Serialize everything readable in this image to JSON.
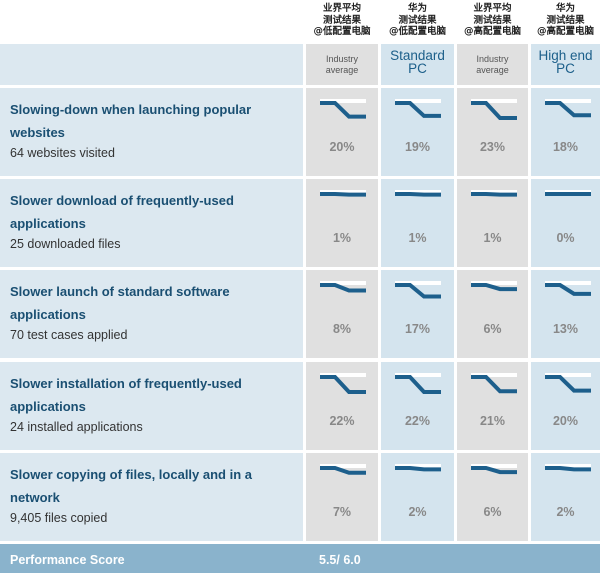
{
  "header": {
    "columns": [
      {
        "cn": "业界平均\n测试结果\n@低配置电脑",
        "sub": "Industry average",
        "sub_style": "small"
      },
      {
        "cn": "华为\n测试结果\n@低配置电脑",
        "sub": "Standard PC",
        "sub_style": "big"
      },
      {
        "cn": "业界平均\n测试结果\n@高配置电脑",
        "sub": "Industry average",
        "sub_style": "small"
      },
      {
        "cn": "华为\n测试结果\n@高配置电脑",
        "sub": "High end PC",
        "sub_style": "big"
      }
    ]
  },
  "colors": {
    "title": "#1a4f72",
    "accent": "#1c5f8a",
    "gray_cell": "#e0e0e0",
    "blue_cell": "#d4e4ee",
    "footer": "#8ab3cc",
    "spark_line": "#1d5f8c"
  },
  "rows": [
    {
      "title": "Slowing-down when launching popular websites",
      "subtitle": "64 websites visited",
      "values": [
        "20%",
        "19%",
        "23%",
        "18%"
      ],
      "impact": [
        0.2,
        0.19,
        0.23,
        0.18
      ]
    },
    {
      "title": "Slower download of frequently-used applications",
      "subtitle": "25 downloaded files",
      "values": [
        "1%",
        "1%",
        "1%",
        "0%"
      ],
      "impact": [
        0.01,
        0.01,
        0.01,
        0.0
      ]
    },
    {
      "title": "Slower launch of standard software applications",
      "subtitle": "70 test cases applied",
      "values": [
        "8%",
        "17%",
        "6%",
        "13%"
      ],
      "impact": [
        0.08,
        0.17,
        0.06,
        0.13
      ]
    },
    {
      "title": "Slower installation of frequently-used applications",
      "subtitle": "24 installed applications",
      "values": [
        "22%",
        "22%",
        "21%",
        "20%"
      ],
      "impact": [
        0.22,
        0.22,
        0.21,
        0.2
      ]
    },
    {
      "title": "Slower copying of files, locally and in a network",
      "subtitle": "9,405 files copied",
      "values": [
        "7%",
        "2%",
        "6%",
        "2%"
      ],
      "impact": [
        0.07,
        0.02,
        0.06,
        0.02
      ]
    }
  ],
  "footer": {
    "label": "Performance Score",
    "score": "5.5/ 6.0"
  }
}
